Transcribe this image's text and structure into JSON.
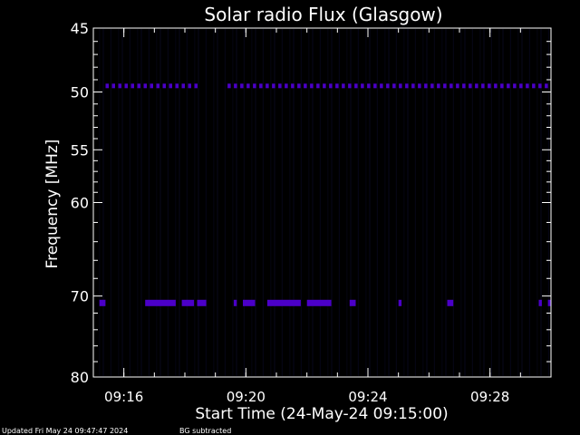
{
  "chart_data": {
    "type": "heatmap",
    "title": "Solar radio Flux (Glasgow)",
    "xlabel": "Start Time (24-May-24 09:15:00)",
    "ylabel": "Frequency [MHz]",
    "x_start": "09:15:00",
    "x_end": "09:30:00",
    "x_ticks": [
      "09:16",
      "09:20",
      "09:24",
      "09:28"
    ],
    "x_tick_minutes_after_09_15": [
      1,
      5,
      9,
      13
    ],
    "y_ticks": [
      45,
      50,
      55,
      60,
      70,
      80
    ],
    "y_scale": "log",
    "ylim": [
      45,
      80
    ],
    "background_color": "#000000",
    "emission_color": "#4b00c8",
    "bands": [
      {
        "frequency_mhz": 49.5,
        "start_minutes": [
          0.4,
          4.4
        ],
        "end_minutes": [
          3.4,
          15.0
        ]
      },
      {
        "frequency_mhz": 70.8,
        "start_minutes": [
          0.2,
          1.7,
          2.9,
          3.4,
          4.6,
          4.9,
          5.7,
          7.0,
          8.4,
          10.0,
          11.6
        ],
        "end_minutes": [
          0.4,
          2.7,
          3.3,
          3.7,
          4.7,
          5.3,
          6.8,
          7.8,
          8.6,
          10.1,
          11.8
        ]
      },
      {
        "frequency_mhz": 70.8,
        "start_minutes": [
          14.6,
          14.9
        ],
        "end_minutes": [
          14.7,
          15.0
        ]
      }
    ]
  },
  "footer": {
    "updated": "Updated Fri May 24 09:47:47 2024",
    "bg_note": "BG subtracted"
  }
}
